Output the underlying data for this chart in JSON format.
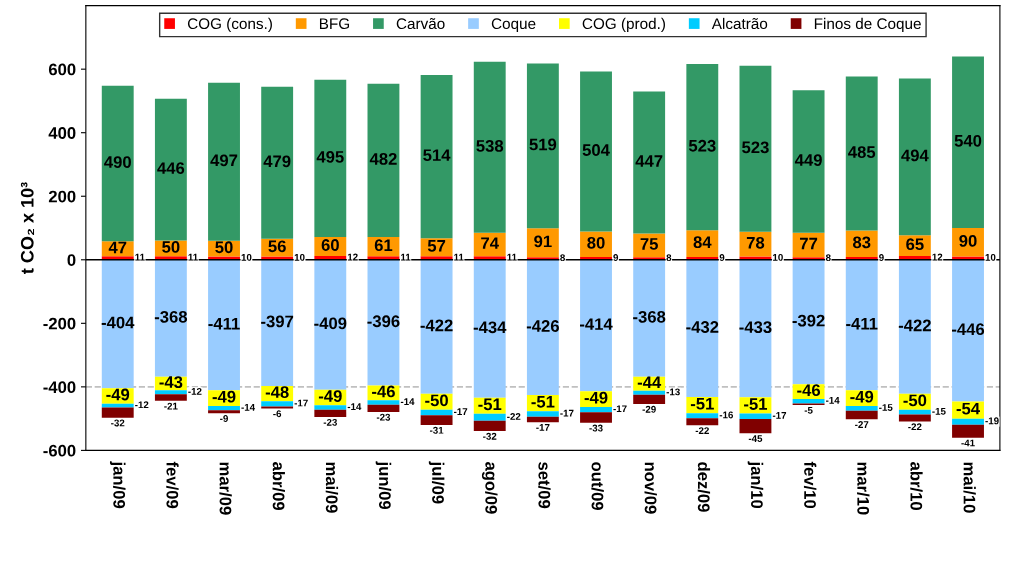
{
  "chart_data": {
    "type": "bar",
    "stacked": true,
    "ylabel": "t CO₂ x 10³",
    "categories": [
      "jan/09",
      "fev/09",
      "mar/09",
      "abr/09",
      "mai/09",
      "jun/09",
      "jul/09",
      "ago/09",
      "set/09",
      "out/09",
      "nov/09",
      "dez/09",
      "jan/10",
      "fev/10",
      "mar/10",
      "abr/10",
      "mai/10"
    ],
    "series": [
      {
        "name": "COG (cons.)",
        "color": "#ff0000",
        "values": [
          11,
          11,
          10,
          10,
          12,
          11,
          11,
          11,
          8,
          9,
          8,
          9,
          10,
          8,
          9,
          12,
          10
        ]
      },
      {
        "name": "BFG",
        "color": "#ff9900",
        "values": [
          47,
          50,
          50,
          56,
          60,
          61,
          57,
          74,
          91,
          80,
          75,
          84,
          78,
          77,
          83,
          65,
          90
        ]
      },
      {
        "name": "Carvão",
        "color": "#339966",
        "values": [
          490,
          446,
          497,
          479,
          495,
          482,
          514,
          538,
          519,
          504,
          447,
          523,
          523,
          449,
          485,
          494,
          540
        ]
      },
      {
        "name": "Coque",
        "color": "#99ccff",
        "values": [
          -404,
          -368,
          -411,
          -397,
          -409,
          -396,
          -422,
          -434,
          -426,
          -414,
          -368,
          -432,
          -433,
          -392,
          -411,
          -422,
          -446
        ]
      },
      {
        "name": "COG (prod.)",
        "color": "#ffff00",
        "values": [
          -49,
          -43,
          -49,
          -48,
          -49,
          -46,
          -50,
          -51,
          -51,
          -49,
          -44,
          -51,
          -51,
          -46,
          -49,
          -50,
          -54
        ]
      },
      {
        "name": "Alcatrão",
        "color": "#00ccff",
        "values": [
          -12,
          -12,
          -14,
          -17,
          -14,
          -14,
          -17,
          -22,
          -17,
          -17,
          -13,
          -16,
          -17,
          -14,
          -15,
          -15,
          -19
        ]
      },
      {
        "name": "Finos de Coque",
        "color": "#800000",
        "values": [
          -32,
          -21,
          -9,
          -6,
          -23,
          -23,
          -31,
          -32,
          -17,
          -33,
          -29,
          -22,
          -45,
          -5,
          -27,
          -22,
          -41
        ]
      }
    ],
    "ylim": [
      -600,
      800
    ],
    "yticks": [
      -600,
      -400,
      -200,
      0,
      200,
      400,
      600
    ],
    "ref_lines": [
      {
        "axis": "y",
        "value": -400,
        "color": "#c0c0c0",
        "line_style": "dashed"
      }
    ],
    "data_labels": true,
    "legend": "top",
    "grid": false
  }
}
